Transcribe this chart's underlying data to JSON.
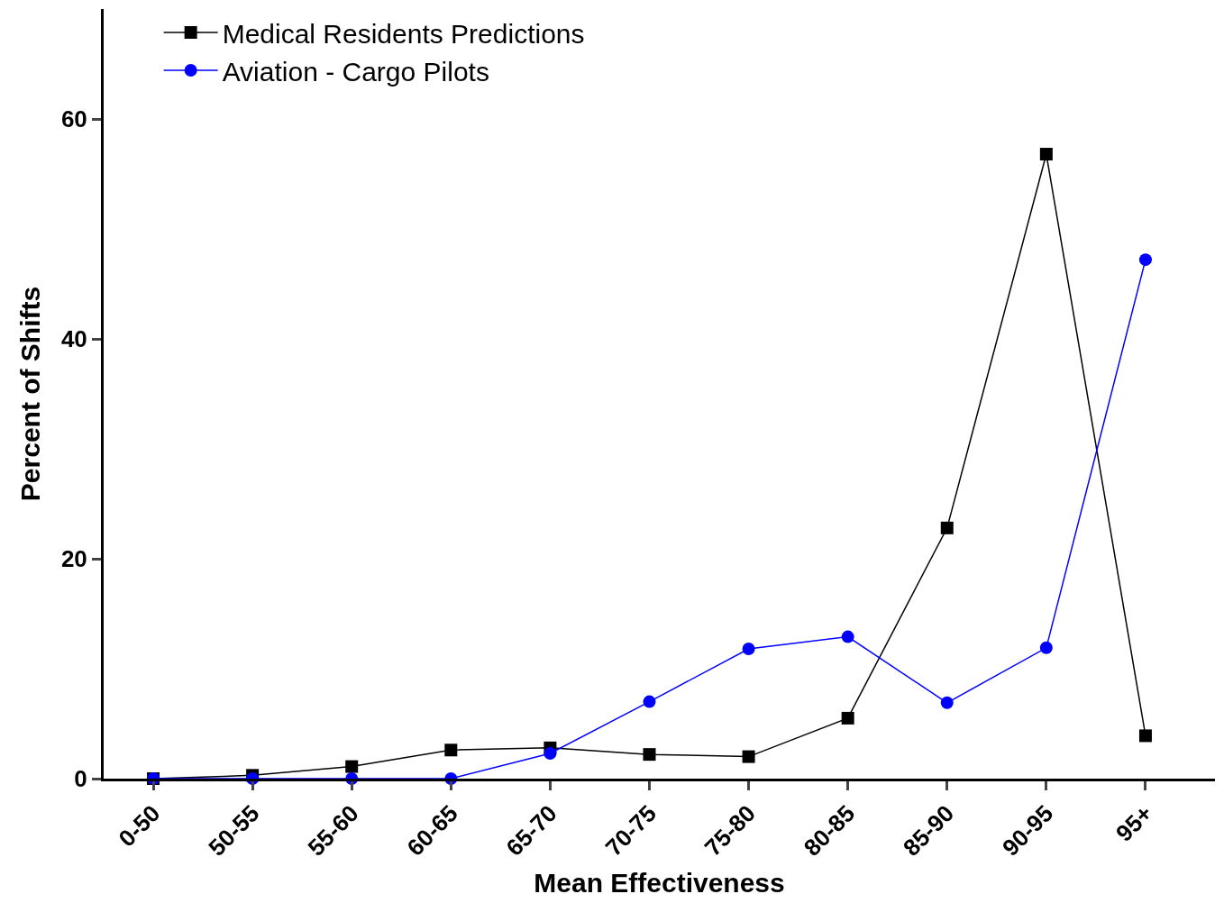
{
  "chart_data": {
    "type": "line",
    "xlabel": "Mean Effectiveness",
    "ylabel": "Percent of Shifts",
    "categories": [
      "0-50",
      "50-55",
      "55-60",
      "60-65",
      "65-70",
      "70-75",
      "75-80",
      "80-85",
      "85-90",
      "90-95",
      "95+"
    ],
    "series": [
      {
        "name": "Medical Residents Predictions",
        "color": "#000000",
        "marker": "square",
        "values": [
          0,
          0.3,
          1.1,
          2.6,
          2.8,
          2.2,
          2.0,
          5.5,
          22.8,
          56.8,
          3.9
        ]
      },
      {
        "name": "Aviation - Cargo Pilots",
        "color": "#0000ff",
        "marker": "circle",
        "values": [
          0,
          0,
          0,
          0,
          2.3,
          7.0,
          11.8,
          12.9,
          6.9,
          11.9,
          47.2
        ]
      }
    ],
    "ylim": [
      0,
      70
    ],
    "yticks": [
      0,
      20,
      40,
      60
    ],
    "legend": "top left",
    "line_style": "solid"
  }
}
